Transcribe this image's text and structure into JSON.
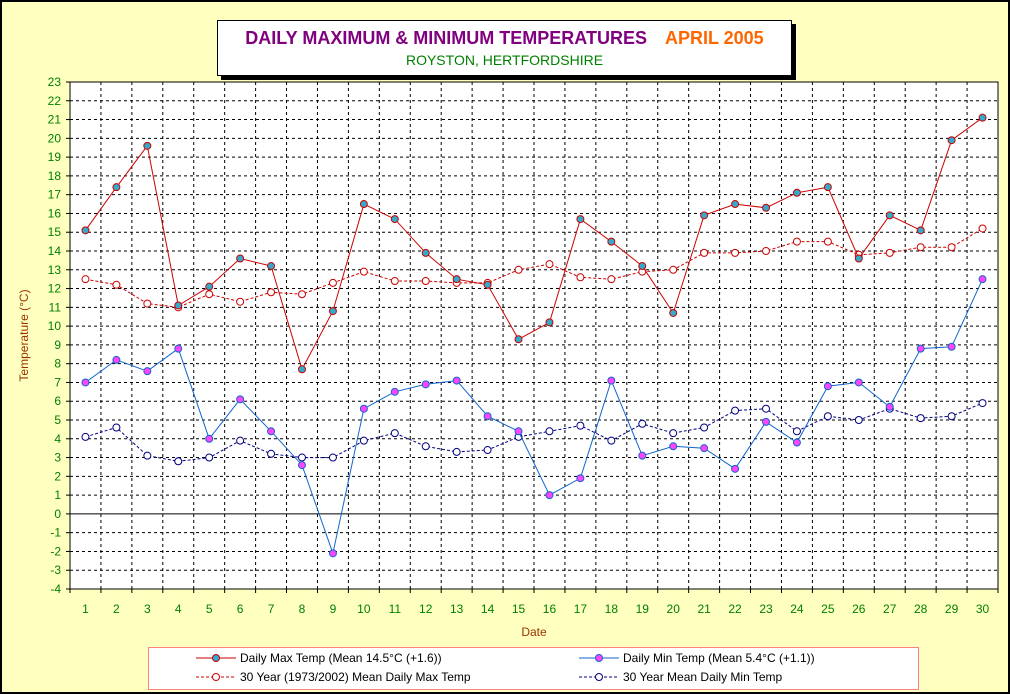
{
  "title": "DAILY MAXIMUM &  MINIMUM  TEMPERATURES",
  "month": "APRIL 2005",
  "subtitle": "ROYSTON, HERTFORDSHIRE",
  "chart_data": {
    "type": "line",
    "title": "DAILY MAXIMUM &  MINIMUM  TEMPERATURES   APRIL 2005",
    "subtitle": "ROYSTON, HERTFORDSHIRE",
    "xlabel": "Date",
    "ylabel": "Temperature (°C)",
    "x": [
      1,
      2,
      3,
      4,
      5,
      6,
      7,
      8,
      9,
      10,
      11,
      12,
      13,
      14,
      15,
      16,
      17,
      18,
      19,
      20,
      21,
      22,
      23,
      24,
      25,
      26,
      27,
      28,
      29,
      30
    ],
    "ylim": [
      -4,
      23
    ],
    "yticks": [
      -4,
      -3,
      -2,
      -1,
      0,
      1,
      2,
      3,
      4,
      5,
      6,
      7,
      8,
      9,
      10,
      11,
      12,
      13,
      14,
      15,
      16,
      17,
      18,
      19,
      20,
      21,
      22,
      23
    ],
    "grid": true,
    "legend_position": "bottom",
    "series": [
      {
        "name": "Daily Max Temp (Mean 14.5°C (+1.6))",
        "color": "#cc0000",
        "style": "solid",
        "marker": "#33aacc",
        "values": [
          15.1,
          17.4,
          19.6,
          11.1,
          12.1,
          13.6,
          13.2,
          7.7,
          10.8,
          16.5,
          15.7,
          13.9,
          12.5,
          12.2,
          9.3,
          10.2,
          15.7,
          14.5,
          13.2,
          10.7,
          15.9,
          16.5,
          16.3,
          17.1,
          17.4,
          13.6,
          15.9,
          15.1,
          19.9,
          21.1
        ]
      },
      {
        "name": "Daily Min Temp (Mean 5.4°C (+1.1))",
        "color": "#1166cc",
        "style": "solid",
        "marker": "#ff44ff",
        "values": [
          7.0,
          8.2,
          7.6,
          8.8,
          4.0,
          6.1,
          4.4,
          2.6,
          -2.1,
          5.6,
          6.5,
          6.9,
          7.1,
          5.2,
          4.4,
          1.0,
          1.9,
          7.1,
          3.1,
          3.6,
          3.5,
          2.4,
          4.9,
          3.8,
          6.8,
          7.0,
          5.7,
          8.8,
          8.9,
          12.5
        ]
      },
      {
        "name": "30 Year (1973/2002) Mean Daily Max Temp",
        "color": "#cc0000",
        "style": "dashed",
        "marker": "open",
        "values": [
          12.5,
          12.2,
          11.2,
          11.0,
          11.7,
          11.3,
          11.8,
          11.7,
          12.3,
          12.9,
          12.4,
          12.4,
          12.3,
          12.3,
          13.0,
          13.3,
          12.6,
          12.5,
          12.9,
          13.0,
          13.9,
          13.9,
          14.0,
          14.5,
          14.5,
          13.8,
          13.9,
          14.2,
          14.2,
          15.2
        ]
      },
      {
        "name": "30 Year Mean Daily Min Temp",
        "color": "#000080",
        "style": "dashed",
        "marker": "open",
        "values": [
          4.1,
          4.6,
          3.1,
          2.8,
          3.0,
          3.9,
          3.2,
          3.0,
          3.0,
          3.9,
          4.3,
          3.6,
          3.3,
          3.4,
          4.1,
          4.4,
          4.7,
          3.9,
          4.8,
          4.3,
          4.6,
          5.5,
          5.6,
          4.4,
          5.2,
          5.0,
          5.6,
          5.1,
          5.2,
          5.9
        ]
      }
    ]
  },
  "colors": {
    "background": "#ffffc0",
    "plot_area": "#ffffff",
    "tick_labels_x": "#008000",
    "tick_labels_y": "#008000",
    "axis_titles": "#993300"
  }
}
